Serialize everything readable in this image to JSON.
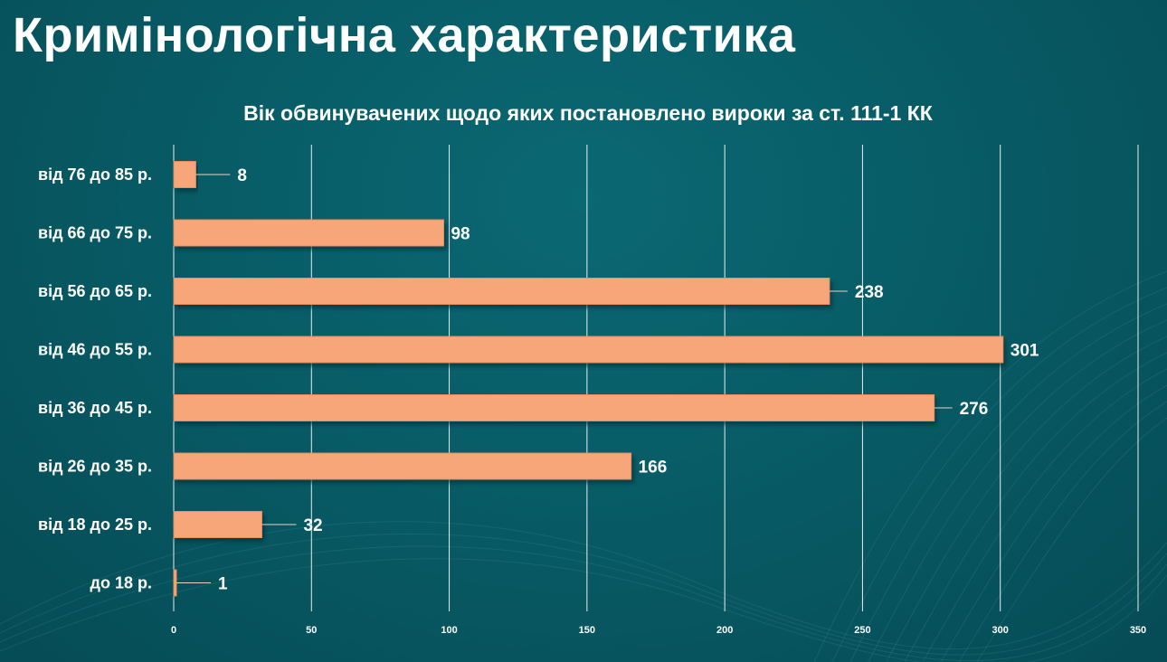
{
  "page": {
    "title": "Кримінологічна характеристика"
  },
  "chart_data": {
    "type": "bar",
    "orientation": "horizontal",
    "title": "Вік обвинувачених щодо яких постановлено вироки за ст. 111-1 КК",
    "categories": [
      "від 76 до 85 р.",
      "від 66 до 75 р.",
      "від 56 до 65 р.",
      "від 46 до 55 р.",
      "від 36 до 45 р.",
      "від 26 до 35 р.",
      "від 18 до 25 р.",
      "до 18 р."
    ],
    "values": [
      8,
      98,
      238,
      301,
      276,
      166,
      32,
      1
    ],
    "xlim": [
      0,
      350
    ],
    "xticks": [
      0,
      50,
      100,
      150,
      200,
      250,
      300,
      350
    ],
    "xlabel": "",
    "ylabel": "",
    "grid": true,
    "legend": "none",
    "colors": {
      "bar": "#f7a679",
      "bar_edge": "#e98d5f",
      "grid": "#ffffff",
      "text": "#ffffff"
    }
  }
}
